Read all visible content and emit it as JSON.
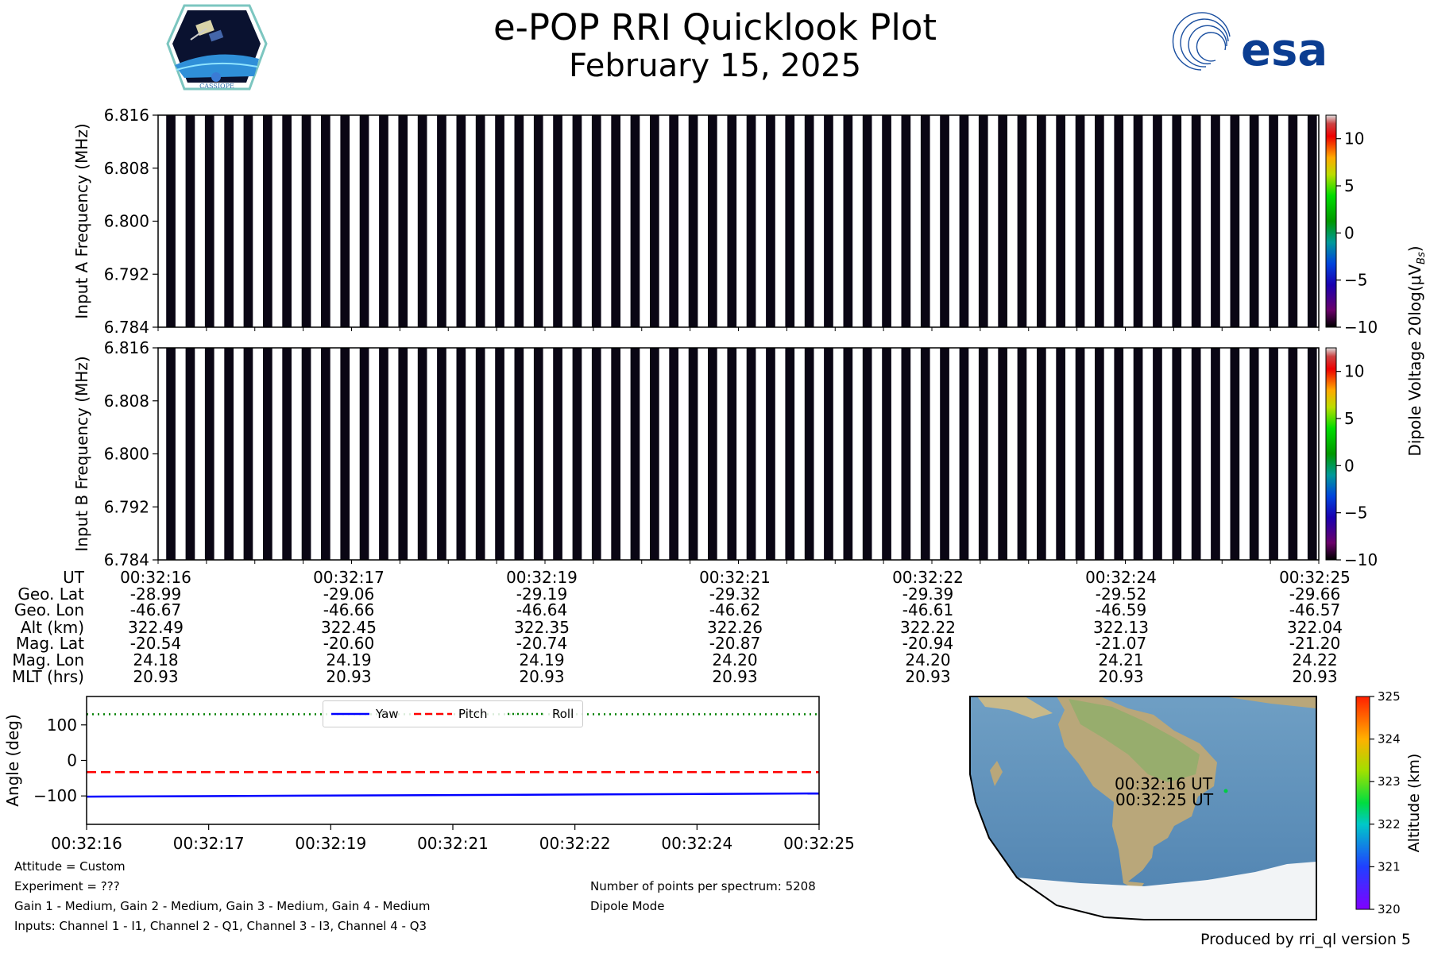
{
  "title": "e-POP RRI Quicklook Plot",
  "date": "February 15, 2025",
  "logos": {
    "left": "CASSIOPE",
    "right": "esa"
  },
  "spectrogram": {
    "freq_ticks": [
      "6.816",
      "6.808",
      "6.800",
      "6.792",
      "6.784"
    ],
    "ylabel_a": "Input A Frequency (MHz)",
    "ylabel_b": "Input B Frequency (MHz)",
    "stripe_count": 60,
    "colorbar_ticks": [
      "10",
      "5",
      "0",
      "−5",
      "−10"
    ],
    "colorbar_label": "Dipole Voltage 20log(μV",
    "colorbar_label_sub": "Bs",
    "colorbar_label_end": ")"
  },
  "ephemeris": {
    "row_labels": [
      "UT",
      "Geo. Lat",
      "Geo. Lon",
      "Alt (km)",
      "Mag. Lat",
      "Mag. Lon",
      "MLT (hrs)"
    ],
    "columns": [
      [
        "00:32:16",
        "-28.99",
        "-46.67",
        "322.49",
        "-20.54",
        "24.18",
        "20.93"
      ],
      [
        "00:32:17",
        "-29.06",
        "-46.66",
        "322.45",
        "-20.60",
        "24.19",
        "20.93"
      ],
      [
        "00:32:19",
        "-29.19",
        "-46.64",
        "322.35",
        "-20.74",
        "24.19",
        "20.93"
      ],
      [
        "00:32:21",
        "-29.32",
        "-46.62",
        "322.26",
        "-20.87",
        "24.20",
        "20.93"
      ],
      [
        "00:32:22",
        "-29.39",
        "-46.61",
        "322.22",
        "-20.94",
        "24.20",
        "20.93"
      ],
      [
        "00:32:24",
        "-29.52",
        "-46.59",
        "322.13",
        "-21.07",
        "24.21",
        "20.93"
      ],
      [
        "00:32:25",
        "-29.66",
        "-46.57",
        "322.04",
        "-21.20",
        "24.22",
        "20.93"
      ]
    ]
  },
  "chart_data": {
    "type": "line",
    "ylabel": "Angle (deg)",
    "x_tick_labels": [
      "00:32:16",
      "00:32:17",
      "00:32:19",
      "00:32:21",
      "00:32:22",
      "00:32:24",
      "00:32:25"
    ],
    "ylim": [
      -180,
      180
    ],
    "y_ticks": [
      100,
      0,
      -100
    ],
    "y_tick_labels": [
      "100",
      "0",
      "−100"
    ],
    "legend_position": "top-center",
    "series": [
      {
        "name": "Yaw",
        "color": "#0000ff",
        "style": "solid",
        "start": -102,
        "end": -93
      },
      {
        "name": "Pitch",
        "color": "#ff0000",
        "style": "dashed",
        "start": -33,
        "end": -33
      },
      {
        "name": "Roll",
        "color": "#008000",
        "style": "dotted",
        "start": 130,
        "end": 130
      }
    ]
  },
  "map": {
    "labels": [
      "00:32:16 UT",
      "00:32:25 UT"
    ],
    "colorbar_ticks": [
      "325",
      "324",
      "323",
      "322",
      "321",
      "320"
    ],
    "colorbar_label": "Altitude (km)"
  },
  "notes": {
    "attitude": "Attitude = Custom",
    "experiment": "Experiment = ???",
    "gains": "Gain 1 - Medium, Gain 2 - Medium, Gain 3 - Medium, Gain 4 - Medium",
    "inputs": "Inputs: Channel 1 - I1, Channel 2 - Q1, Channel 3 - I3, Channel 4 - Q3",
    "points": "Number of points per spectrum: 5208",
    "mode": "Dipole Mode"
  },
  "produced_by": "Produced by rri_ql version 5"
}
